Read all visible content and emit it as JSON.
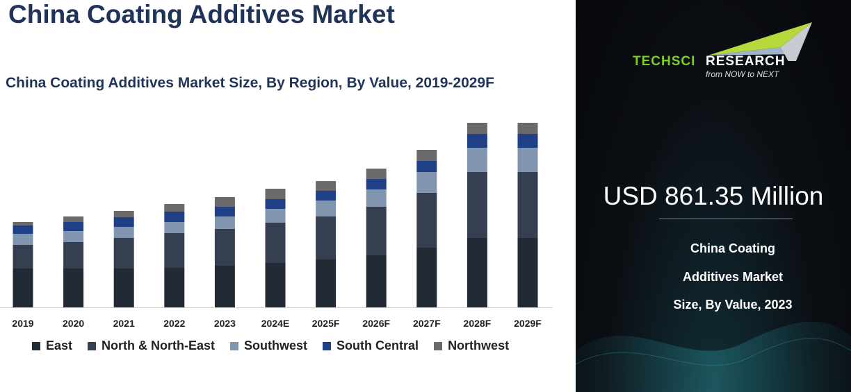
{
  "page": {
    "title": "China Coating Additives Market"
  },
  "chart_data": {
    "type": "bar",
    "stacked": true,
    "title": "China Coating Additives Market Size, By Region, By Value, 2019-2029F",
    "xlabel": "",
    "ylabel": "",
    "grid": false,
    "legend_position": "bottom",
    "categories": [
      "2019",
      "2020",
      "2021",
      "2022",
      "2023",
      "2024E",
      "2025F",
      "2026F",
      "2027F",
      "2028F",
      "2029F"
    ],
    "series": [
      {
        "name": "East",
        "color": "#222a36",
        "values": [
          56,
          56,
          56,
          57,
          60,
          64,
          69,
          75,
          86,
          100,
          100
        ]
      },
      {
        "name": "North & North-East",
        "color": "#353f50",
        "values": [
          34,
          38,
          44,
          50,
          53,
          58,
          62,
          70,
          79,
          95,
          95
        ]
      },
      {
        "name": "Southwest",
        "color": "#8295b0",
        "values": [
          16,
          16,
          16,
          16,
          18,
          20,
          23,
          25,
          30,
          35,
          35
        ]
      },
      {
        "name": "South Central",
        "color": "#1f3f87",
        "values": [
          12,
          13,
          14,
          15,
          14,
          14,
          14,
          15,
          16,
          20,
          20
        ]
      },
      {
        "name": "Northwest",
        "color": "#6a6a6a",
        "values": [
          5,
          8,
          9,
          11,
          14,
          15,
          14,
          15,
          16,
          16,
          16
        ]
      }
    ]
  },
  "side_panel": {
    "logo": {
      "part1": "TechSci",
      "part2": "Research",
      "tagline": "from NOW to NEXT"
    },
    "value": "USD 861.35 Million",
    "caption_lines": [
      "China Coating",
      "Additives Market",
      "Size, By Value, 2023"
    ]
  }
}
